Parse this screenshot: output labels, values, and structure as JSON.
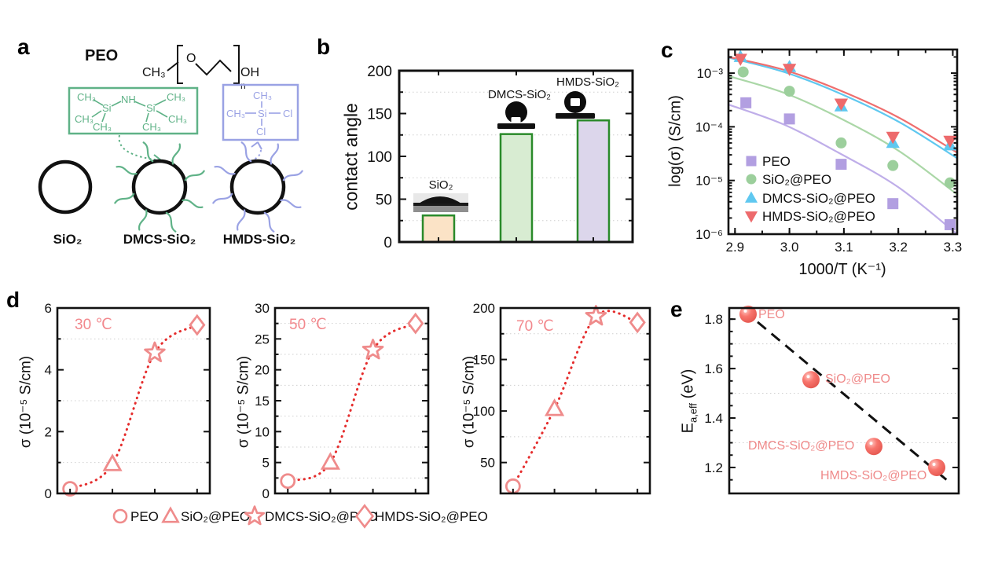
{
  "panels": {
    "a": {
      "label": "a",
      "peo_title": "PEO",
      "formula": {
        "ch3": "CH₃",
        "o": "O",
        "oh": "OH",
        "n": "n"
      },
      "green_atoms": [
        "CH₃",
        "Si",
        "NH",
        "Si",
        "CH₃",
        "CH₃",
        "CH₃",
        "CH₃",
        "CH₃"
      ],
      "purple_atoms": [
        "CH₃",
        "Si",
        "CH₃",
        "Cl",
        "Cl"
      ],
      "particle_labels": [
        "SiO₂",
        "DMCS-SiO₂",
        "HMDS-SiO₂"
      ],
      "green_color": "#5fb287",
      "purple_color": "#9aa2e4"
    },
    "b": {
      "label": "b"
    },
    "c": {
      "label": "c"
    },
    "d": {
      "label": "d"
    },
    "e": {
      "label": "e"
    }
  },
  "chart_data": [
    {
      "id": "b",
      "type": "bar",
      "ylabel": "contact angle",
      "ylim": [
        0,
        200
      ],
      "yticks": [
        0,
        50,
        100,
        150,
        200
      ],
      "minor_grid": [
        25,
        75,
        125,
        175
      ],
      "categories": [
        "SiO₂",
        "DMCS-SiO₂",
        "HMDS-SiO₂"
      ],
      "values": [
        31,
        126,
        142
      ],
      "bar_fill": [
        "#fbe3c6",
        "#d8ecd2",
        "#dcd6eb"
      ],
      "bar_edge": "#2a8a2a"
    },
    {
      "id": "c",
      "type": "line-scatter",
      "xlabel": "1000/T (K⁻¹)",
      "ylabel": "log(σ) (S/cm)",
      "xlim": [
        2.888,
        3.308
      ],
      "xticks": [
        2.9,
        3.0,
        3.1,
        3.2,
        3.3
      ],
      "ytick_labels": [
        "10⁻³",
        "10⁻⁴",
        "10⁻⁵",
        "10⁻⁶"
      ],
      "ytick_exponents": [
        -3,
        -4,
        -5,
        -6
      ],
      "ylim_exponents": [
        -6,
        -2.56
      ],
      "legend_position": "lower-left",
      "series": [
        {
          "name": "PEO",
          "marker": "square",
          "color": "#b29fe1",
          "line_color": "#bfaee9",
          "x": [
            2.92,
            3.0,
            3.095,
            3.19,
            3.295
          ],
          "y": [
            0.00028,
            0.00014,
            2e-05,
            3.7e-06,
            1.5e-06
          ],
          "fit_x": [
            2.888,
            2.99,
            3.09,
            3.2,
            3.308
          ],
          "fit_y": [
            0.00026,
            0.00011,
            3.3e-05,
            7.5e-06,
            1e-06
          ]
        },
        {
          "name": "SiO₂@PEO",
          "marker": "circle",
          "color": "#9ccf9c",
          "line_color": "#abd7a7",
          "x": [
            2.915,
            3.0,
            3.095,
            3.19,
            3.295
          ],
          "y": [
            0.00105,
            0.00046,
            5e-05,
            1.9e-05,
            9e-06
          ],
          "fit_x": [
            2.888,
            2.99,
            3.09,
            3.2,
            3.308
          ],
          "fit_y": [
            0.00088,
            0.00043,
            0.00015,
            3.6e-05,
            5.5e-06
          ]
        },
        {
          "name": "DMCS-SiO₂@PEO",
          "marker": "triangle-up",
          "color": "#5fc8f0",
          "line_color": "#5fc8f0",
          "x": [
            2.91,
            3.0,
            3.095,
            3.19,
            3.295
          ],
          "y": [
            0.002,
            0.0013,
            0.00024,
            5e-05,
            4.5e-05
          ],
          "fit_x": [
            2.888,
            2.99,
            3.09,
            3.2,
            3.308
          ],
          "fit_y": [
            0.00195,
            0.00105,
            0.00043,
            0.000125,
            2.6e-05
          ]
        },
        {
          "name": "HMDS-SiO₂@PEO",
          "marker": "triangle-down",
          "color": "#ed6a6c",
          "line_color": "#ef6e6e",
          "x": [
            2.91,
            3.0,
            3.095,
            3.19,
            3.295
          ],
          "y": [
            0.00185,
            0.0012,
            0.00027,
            6.5e-05,
            5.5e-05
          ],
          "fit_x": [
            2.888,
            2.99,
            3.09,
            3.2,
            3.308
          ],
          "fit_y": [
            0.002,
            0.00115,
            0.00049,
            0.00015,
            3.3e-05
          ]
        }
      ]
    },
    {
      "id": "d",
      "type": "scatter",
      "ylabel": "σ (10⁻⁵ S/cm)",
      "line_color": "#e52c2c",
      "marker_color": "#ef8b8b",
      "temp_color": "#f2888d",
      "legend": [
        {
          "label": "PEO",
          "marker": "circle"
        },
        {
          "label": "SiO₂@PEO",
          "marker": "triangle-up"
        },
        {
          "label": "DMCS-SiO₂@PEO",
          "marker": "star"
        },
        {
          "label": "HMDS-SiO₂@PEO",
          "marker": "diamond"
        }
      ],
      "subplots": [
        {
          "temp_label": "30 ℃",
          "ylim": [
            0,
            6
          ],
          "yticks": [
            0,
            2,
            4,
            6
          ],
          "minor_grid": [
            1,
            3,
            5
          ],
          "values": [
            0.15,
            0.95,
            4.55,
            5.45
          ]
        },
        {
          "temp_label": "50 ℃",
          "ylim": [
            0,
            30
          ],
          "yticks": [
            0,
            5,
            10,
            15,
            20,
            25,
            30
          ],
          "minor_grid": [
            2.5,
            7.5,
            12.5,
            17.5,
            22.5,
            27.5
          ],
          "values": [
            2.0,
            5.0,
            23.2,
            27.5
          ]
        },
        {
          "temp_label": "70 ℃",
          "ylim": [
            20,
            200
          ],
          "yticks": [
            50,
            100,
            150,
            200
          ],
          "minor_grid": [
            75,
            125,
            175
          ],
          "values": [
            27,
            102,
            192,
            186
          ]
        }
      ]
    },
    {
      "id": "e",
      "type": "scatter",
      "ylabel_main": "E",
      "ylabel_sub": "a,eff",
      "ylabel_unit": " (eV)",
      "ylim": [
        1.095,
        1.845
      ],
      "yticks": [
        1.2,
        1.4,
        1.6,
        1.8
      ],
      "minor_grid": [
        1.3,
        1.5,
        1.7
      ],
      "point_color": "#f8756d",
      "label_color": "#ef8a8a",
      "trend_color": "#111111",
      "points": [
        {
          "label": "PEO",
          "x": 1,
          "y": 1.82
        },
        {
          "label": "SiO₂@PEO",
          "x": 2,
          "y": 1.555
        },
        {
          "label": "DMCS-SiO₂@PEO",
          "x": 3,
          "y": 1.285
        },
        {
          "label": "HMDS-SiO₂@PEO",
          "x": 4,
          "y": 1.2
        }
      ],
      "trend": {
        "x1": 0.93,
        "y1": 1.835,
        "x2": 4.18,
        "y2": 1.145
      }
    }
  ]
}
